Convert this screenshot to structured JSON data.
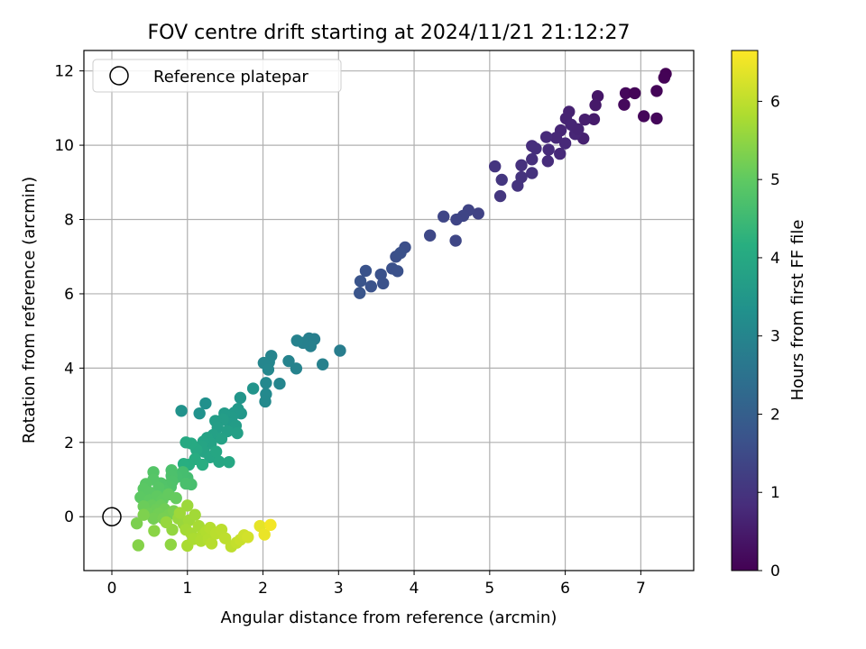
{
  "chart_data": {
    "type": "scatter",
    "title": "FOV centre drift starting at 2024/11/21 21:12:27",
    "xlabel": "Angular distance from reference (arcmin)",
    "ylabel": "Rotation from reference (arcmin)",
    "xlim": [
      -0.37,
      7.7
    ],
    "ylim": [
      -1.45,
      12.55
    ],
    "xticks": [
      0,
      1,
      2,
      3,
      4,
      5,
      6,
      7
    ],
    "yticks": [
      0,
      2,
      4,
      6,
      8,
      10,
      12
    ],
    "grid": true,
    "legend": {
      "placement": "top-left",
      "entries": [
        "Reference platepar"
      ]
    },
    "reference_point": {
      "label": "Reference platepar",
      "x": 0,
      "y": 0
    },
    "colorbar": {
      "label": "Hours from first FF file",
      "colormap": "viridis",
      "range": [
        0,
        6.65
      ],
      "ticks": [
        0,
        1,
        2,
        3,
        4,
        5,
        6
      ]
    },
    "points": [
      {
        "x": 7.33,
        "y": 11.92,
        "h": 0.02
      },
      {
        "x": 7.31,
        "y": 11.82,
        "h": 0.04
      },
      {
        "x": 7.21,
        "y": 11.46,
        "h": 0.08
      },
      {
        "x": 6.8,
        "y": 11.4,
        "h": 0.14
      },
      {
        "x": 6.78,
        "y": 11.09,
        "h": 0.16
      },
      {
        "x": 7.04,
        "y": 10.78,
        "h": 0.1
      },
      {
        "x": 7.21,
        "y": 10.72,
        "h": 0.12
      },
      {
        "x": 6.92,
        "y": 11.4,
        "h": 0.06
      },
      {
        "x": 6.43,
        "y": 11.32,
        "h": 0.4
      },
      {
        "x": 6.4,
        "y": 11.08,
        "h": 0.45
      },
      {
        "x": 6.38,
        "y": 10.7,
        "h": 0.5
      },
      {
        "x": 6.26,
        "y": 10.69,
        "h": 0.55
      },
      {
        "x": 6.24,
        "y": 10.18,
        "h": 0.6
      },
      {
        "x": 6.05,
        "y": 10.9,
        "h": 0.62
      },
      {
        "x": 6.01,
        "y": 10.72,
        "h": 0.65
      },
      {
        "x": 6.08,
        "y": 10.55,
        "h": 0.68
      },
      {
        "x": 6.13,
        "y": 10.3,
        "h": 0.7
      },
      {
        "x": 5.94,
        "y": 10.4,
        "h": 0.72
      },
      {
        "x": 5.88,
        "y": 10.2,
        "h": 0.74
      },
      {
        "x": 6.0,
        "y": 10.05,
        "h": 0.76
      },
      {
        "x": 5.93,
        "y": 9.77,
        "h": 0.78
      },
      {
        "x": 6.17,
        "y": 10.43,
        "h": 0.66
      },
      {
        "x": 5.75,
        "y": 10.22,
        "h": 0.8
      },
      {
        "x": 5.78,
        "y": 9.88,
        "h": 0.82
      },
      {
        "x": 5.77,
        "y": 9.57,
        "h": 0.84
      },
      {
        "x": 5.56,
        "y": 9.98,
        "h": 0.86
      },
      {
        "x": 5.61,
        "y": 9.91,
        "h": 0.88
      },
      {
        "x": 5.56,
        "y": 9.62,
        "h": 0.9
      },
      {
        "x": 5.42,
        "y": 9.46,
        "h": 0.92
      },
      {
        "x": 5.56,
        "y": 9.25,
        "h": 0.94
      },
      {
        "x": 5.42,
        "y": 9.14,
        "h": 0.96
      },
      {
        "x": 5.37,
        "y": 8.91,
        "h": 0.98
      },
      {
        "x": 5.07,
        "y": 9.43,
        "h": 1.02
      },
      {
        "x": 5.16,
        "y": 9.07,
        "h": 1.04
      },
      {
        "x": 5.14,
        "y": 8.63,
        "h": 1.06
      },
      {
        "x": 4.85,
        "y": 8.16,
        "h": 1.3
      },
      {
        "x": 4.72,
        "y": 8.25,
        "h": 1.34
      },
      {
        "x": 4.65,
        "y": 8.1,
        "h": 1.36
      },
      {
        "x": 4.56,
        "y": 8.0,
        "h": 1.38
      },
      {
        "x": 4.39,
        "y": 8.08,
        "h": 1.4
      },
      {
        "x": 4.55,
        "y": 7.43,
        "h": 1.42
      },
      {
        "x": 4.21,
        "y": 7.57,
        "h": 1.44
      },
      {
        "x": 3.88,
        "y": 7.25,
        "h": 1.6
      },
      {
        "x": 3.76,
        "y": 7.0,
        "h": 1.62
      },
      {
        "x": 3.82,
        "y": 7.1,
        "h": 1.63
      },
      {
        "x": 3.71,
        "y": 6.68,
        "h": 1.64
      },
      {
        "x": 3.78,
        "y": 6.61,
        "h": 1.65
      },
      {
        "x": 3.56,
        "y": 6.52,
        "h": 1.66
      },
      {
        "x": 3.59,
        "y": 6.28,
        "h": 1.67
      },
      {
        "x": 3.43,
        "y": 6.2,
        "h": 1.68
      },
      {
        "x": 3.36,
        "y": 6.62,
        "h": 1.7
      },
      {
        "x": 3.29,
        "y": 6.34,
        "h": 1.72
      },
      {
        "x": 3.28,
        "y": 6.02,
        "h": 1.74
      },
      {
        "x": 3.02,
        "y": 4.47,
        "h": 2.8
      },
      {
        "x": 2.79,
        "y": 4.1,
        "h": 2.9
      },
      {
        "x": 2.68,
        "y": 4.78,
        "h": 2.82
      },
      {
        "x": 2.61,
        "y": 4.8,
        "h": 2.84
      },
      {
        "x": 2.63,
        "y": 4.59,
        "h": 2.86
      },
      {
        "x": 2.53,
        "y": 4.68,
        "h": 2.88
      },
      {
        "x": 2.45,
        "y": 4.74,
        "h": 2.92
      },
      {
        "x": 2.34,
        "y": 4.19,
        "h": 2.94
      },
      {
        "x": 2.44,
        "y": 3.99,
        "h": 2.96
      },
      {
        "x": 2.22,
        "y": 3.58,
        "h": 3.0
      },
      {
        "x": 2.11,
        "y": 4.33,
        "h": 2.98
      },
      {
        "x": 2.08,
        "y": 4.16,
        "h": 3.02
      },
      {
        "x": 2.01,
        "y": 4.14,
        "h": 3.04
      },
      {
        "x": 2.07,
        "y": 3.96,
        "h": 3.06
      },
      {
        "x": 2.04,
        "y": 3.6,
        "h": 3.08
      },
      {
        "x": 2.04,
        "y": 3.3,
        "h": 3.1
      },
      {
        "x": 2.03,
        "y": 3.1,
        "h": 3.12
      },
      {
        "x": 1.87,
        "y": 3.45,
        "h": 3.4
      },
      {
        "x": 1.7,
        "y": 3.2,
        "h": 3.45
      },
      {
        "x": 1.71,
        "y": 2.78,
        "h": 3.5
      },
      {
        "x": 1.67,
        "y": 2.9,
        "h": 3.52
      },
      {
        "x": 1.62,
        "y": 2.8,
        "h": 3.55
      },
      {
        "x": 1.59,
        "y": 2.68,
        "h": 3.58
      },
      {
        "x": 1.49,
        "y": 2.78,
        "h": 3.6
      },
      {
        "x": 1.56,
        "y": 2.5,
        "h": 3.62
      },
      {
        "x": 1.64,
        "y": 2.45,
        "h": 3.64
      },
      {
        "x": 1.47,
        "y": 2.62,
        "h": 3.66
      },
      {
        "x": 1.37,
        "y": 2.58,
        "h": 3.68
      },
      {
        "x": 1.4,
        "y": 2.4,
        "h": 3.7
      },
      {
        "x": 1.53,
        "y": 2.3,
        "h": 3.72
      },
      {
        "x": 1.66,
        "y": 2.25,
        "h": 3.74
      },
      {
        "x": 1.34,
        "y": 2.2,
        "h": 3.76
      },
      {
        "x": 1.45,
        "y": 2.1,
        "h": 3.78
      },
      {
        "x": 1.26,
        "y": 2.12,
        "h": 3.8
      },
      {
        "x": 1.31,
        "y": 1.97,
        "h": 3.82
      },
      {
        "x": 1.21,
        "y": 2.02,
        "h": 3.84
      },
      {
        "x": 1.18,
        "y": 1.9,
        "h": 3.86
      },
      {
        "x": 1.22,
        "y": 1.75,
        "h": 3.88
      },
      {
        "x": 1.3,
        "y": 1.6,
        "h": 3.9
      },
      {
        "x": 1.38,
        "y": 1.75,
        "h": 3.92
      },
      {
        "x": 1.42,
        "y": 1.48,
        "h": 3.94
      },
      {
        "x": 1.55,
        "y": 1.47,
        "h": 3.96
      },
      {
        "x": 1.12,
        "y": 1.8,
        "h": 3.98
      },
      {
        "x": 1.05,
        "y": 1.97,
        "h": 4.0
      },
      {
        "x": 0.98,
        "y": 2.0,
        "h": 4.02
      },
      {
        "x": 1.1,
        "y": 1.55,
        "h": 4.1
      },
      {
        "x": 1.2,
        "y": 1.4,
        "h": 4.12
      },
      {
        "x": 1.02,
        "y": 1.4,
        "h": 4.14
      },
      {
        "x": 0.95,
        "y": 1.42,
        "h": 4.16
      },
      {
        "x": 1.24,
        "y": 3.05,
        "h": 3.3
      },
      {
        "x": 1.16,
        "y": 2.78,
        "h": 3.34
      },
      {
        "x": 0.92,
        "y": 2.85,
        "h": 3.36
      },
      {
        "x": 1.0,
        "y": 1.05,
        "h": 4.6
      },
      {
        "x": 0.94,
        "y": 1.2,
        "h": 4.62
      },
      {
        "x": 0.86,
        "y": 1.07,
        "h": 4.64
      },
      {
        "x": 1.05,
        "y": 0.87,
        "h": 4.66
      },
      {
        "x": 0.98,
        "y": 0.89,
        "h": 4.68
      },
      {
        "x": 0.79,
        "y": 1.25,
        "h": 4.7
      },
      {
        "x": 0.79,
        "y": 1.1,
        "h": 4.72
      },
      {
        "x": 0.8,
        "y": 0.95,
        "h": 4.74
      },
      {
        "x": 0.78,
        "y": 0.8,
        "h": 4.76
      },
      {
        "x": 0.72,
        "y": 0.85,
        "h": 4.78
      },
      {
        "x": 0.65,
        "y": 0.9,
        "h": 4.8
      },
      {
        "x": 0.7,
        "y": 0.7,
        "h": 4.82
      },
      {
        "x": 0.55,
        "y": 1.2,
        "h": 4.84
      },
      {
        "x": 0.55,
        "y": 1.0,
        "h": 4.86
      },
      {
        "x": 0.62,
        "y": 0.78,
        "h": 4.88
      },
      {
        "x": 0.45,
        "y": 0.88,
        "h": 4.9
      },
      {
        "x": 0.42,
        "y": 0.75,
        "h": 4.92
      },
      {
        "x": 0.5,
        "y": 0.65,
        "h": 4.94
      },
      {
        "x": 0.38,
        "y": 0.52,
        "h": 4.96
      },
      {
        "x": 0.5,
        "y": 0.45,
        "h": 4.98
      },
      {
        "x": 0.6,
        "y": 0.55,
        "h": 5.0
      },
      {
        "x": 0.67,
        "y": 0.45,
        "h": 5.02
      },
      {
        "x": 0.75,
        "y": 0.6,
        "h": 5.04
      },
      {
        "x": 0.85,
        "y": 0.5,
        "h": 5.06
      },
      {
        "x": 0.53,
        "y": 0.3,
        "h": 5.08
      },
      {
        "x": 0.65,
        "y": 0.3,
        "h": 5.1
      },
      {
        "x": 0.42,
        "y": 0.28,
        "h": 5.12
      },
      {
        "x": 0.58,
        "y": 0.18,
        "h": 5.14
      },
      {
        "x": 0.48,
        "y": 0.08,
        "h": 5.16
      },
      {
        "x": 0.7,
        "y": 0.2,
        "h": 5.18
      },
      {
        "x": 0.62,
        "y": 0.08,
        "h": 5.2
      },
      {
        "x": 0.55,
        "y": -0.05,
        "h": 5.22
      },
      {
        "x": 0.75,
        "y": 0.05,
        "h": 5.24
      },
      {
        "x": 0.68,
        "y": -0.05,
        "h": 5.26
      },
      {
        "x": 0.82,
        "y": 0.15,
        "h": 5.28
      },
      {
        "x": 0.33,
        "y": -0.18,
        "h": 5.3
      },
      {
        "x": 0.42,
        "y": 0.05,
        "h": 5.32
      },
      {
        "x": 0.35,
        "y": -0.77,
        "h": 5.4
      },
      {
        "x": 0.56,
        "y": -0.38,
        "h": 5.45
      },
      {
        "x": 0.78,
        "y": -0.75,
        "h": 5.5
      },
      {
        "x": 0.8,
        "y": -0.35,
        "h": 5.55
      },
      {
        "x": 0.72,
        "y": -0.15,
        "h": 5.58
      },
      {
        "x": 0.88,
        "y": -0.05,
        "h": 5.6
      },
      {
        "x": 0.95,
        "y": -0.2,
        "h": 5.62
      },
      {
        "x": 1.0,
        "y": 0.3,
        "h": 5.64
      },
      {
        "x": 0.9,
        "y": 0.1,
        "h": 5.66
      },
      {
        "x": 1.02,
        "y": -0.1,
        "h": 5.68
      },
      {
        "x": 1.1,
        "y": 0.05,
        "h": 5.7
      },
      {
        "x": 0.98,
        "y": -0.35,
        "h": 5.72
      },
      {
        "x": 1.05,
        "y": -0.45,
        "h": 5.74
      },
      {
        "x": 1.15,
        "y": -0.25,
        "h": 5.76
      },
      {
        "x": 1.0,
        "y": -0.78,
        "h": 5.78
      },
      {
        "x": 1.08,
        "y": -0.6,
        "h": 5.8
      },
      {
        "x": 1.2,
        "y": -0.5,
        "h": 5.82
      },
      {
        "x": 1.18,
        "y": -0.65,
        "h": 5.84
      },
      {
        "x": 1.25,
        "y": -0.4,
        "h": 5.86
      },
      {
        "x": 1.28,
        "y": -0.6,
        "h": 5.88
      },
      {
        "x": 1.3,
        "y": -0.3,
        "h": 5.9
      },
      {
        "x": 1.32,
        "y": -0.72,
        "h": 5.92
      },
      {
        "x": 1.38,
        "y": -0.45,
        "h": 5.94
      },
      {
        "x": 1.45,
        "y": -0.35,
        "h": 5.96
      },
      {
        "x": 1.5,
        "y": -0.58,
        "h": 5.98
      },
      {
        "x": 1.58,
        "y": -0.8,
        "h": 6.0
      },
      {
        "x": 1.65,
        "y": -0.7,
        "h": 6.05
      },
      {
        "x": 1.7,
        "y": -0.62,
        "h": 6.1
      },
      {
        "x": 1.75,
        "y": -0.5,
        "h": 6.15
      },
      {
        "x": 1.8,
        "y": -0.55,
        "h": 6.2
      },
      {
        "x": 1.96,
        "y": -0.25,
        "h": 6.4
      },
      {
        "x": 2.02,
        "y": -0.48,
        "h": 6.45
      },
      {
        "x": 2.1,
        "y": -0.22,
        "h": 6.55
      }
    ]
  }
}
